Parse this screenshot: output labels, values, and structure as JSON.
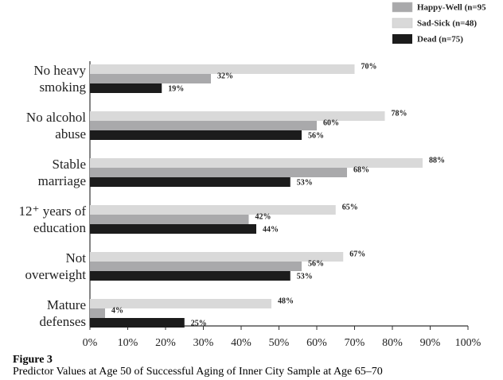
{
  "chart_data": {
    "type": "hbar",
    "title": "Figure 3",
    "subtitle": "Predictor Values at Age 50 of Successful Aging of Inner City Sample at Age 65–70",
    "categories": [
      "No heavy smoking",
      "No alcohol abuse",
      "Stable marriage",
      "12⁺ years of education",
      "Not overweight",
      "Mature defenses"
    ],
    "series": [
      {
        "name": "Sad-Sick (n=48)",
        "color": "#d9d9d9",
        "values": [
          70,
          78,
          88,
          65,
          67,
          48
        ],
        "value_labels": [
          "70%",
          "78%",
          "88%",
          "65%",
          "67%",
          "48%"
        ]
      },
      {
        "name": "Happy-Well (n=95",
        "color": "#a9a9ab",
        "values": [
          32,
          60,
          68,
          42,
          56,
          4
        ],
        "value_labels": [
          "32%",
          "60%",
          "68%",
          "42%",
          "56%",
          "4%"
        ]
      },
      {
        "name": "Dead (n=75)",
        "color": "#1c1c1c",
        "values": [
          19,
          56,
          53,
          44,
          53,
          25
        ],
        "value_labels": [
          "19%",
          "56%",
          "53%",
          "44%",
          "53%",
          "25%"
        ]
      }
    ],
    "legend_order": [
      1,
      0,
      2
    ],
    "xlim": [
      0,
      100
    ],
    "xticks": [
      {
        "value": 0,
        "label": "0%"
      },
      {
        "value": 10,
        "label": "10%"
      },
      {
        "value": 20,
        "label": "20%"
      },
      {
        "value": 30,
        "label": "30%"
      },
      {
        "value": 40,
        "label": "40%"
      },
      {
        "value": 50,
        "label": "50%"
      },
      {
        "value": 60,
        "label": "60%"
      },
      {
        "value": 70,
        "label": "70%"
      },
      {
        "value": 80,
        "label": "80%"
      },
      {
        "value": 90,
        "label": "90%"
      },
      {
        "value": 100,
        "label": "100%"
      }
    ],
    "legend": "top-right"
  }
}
